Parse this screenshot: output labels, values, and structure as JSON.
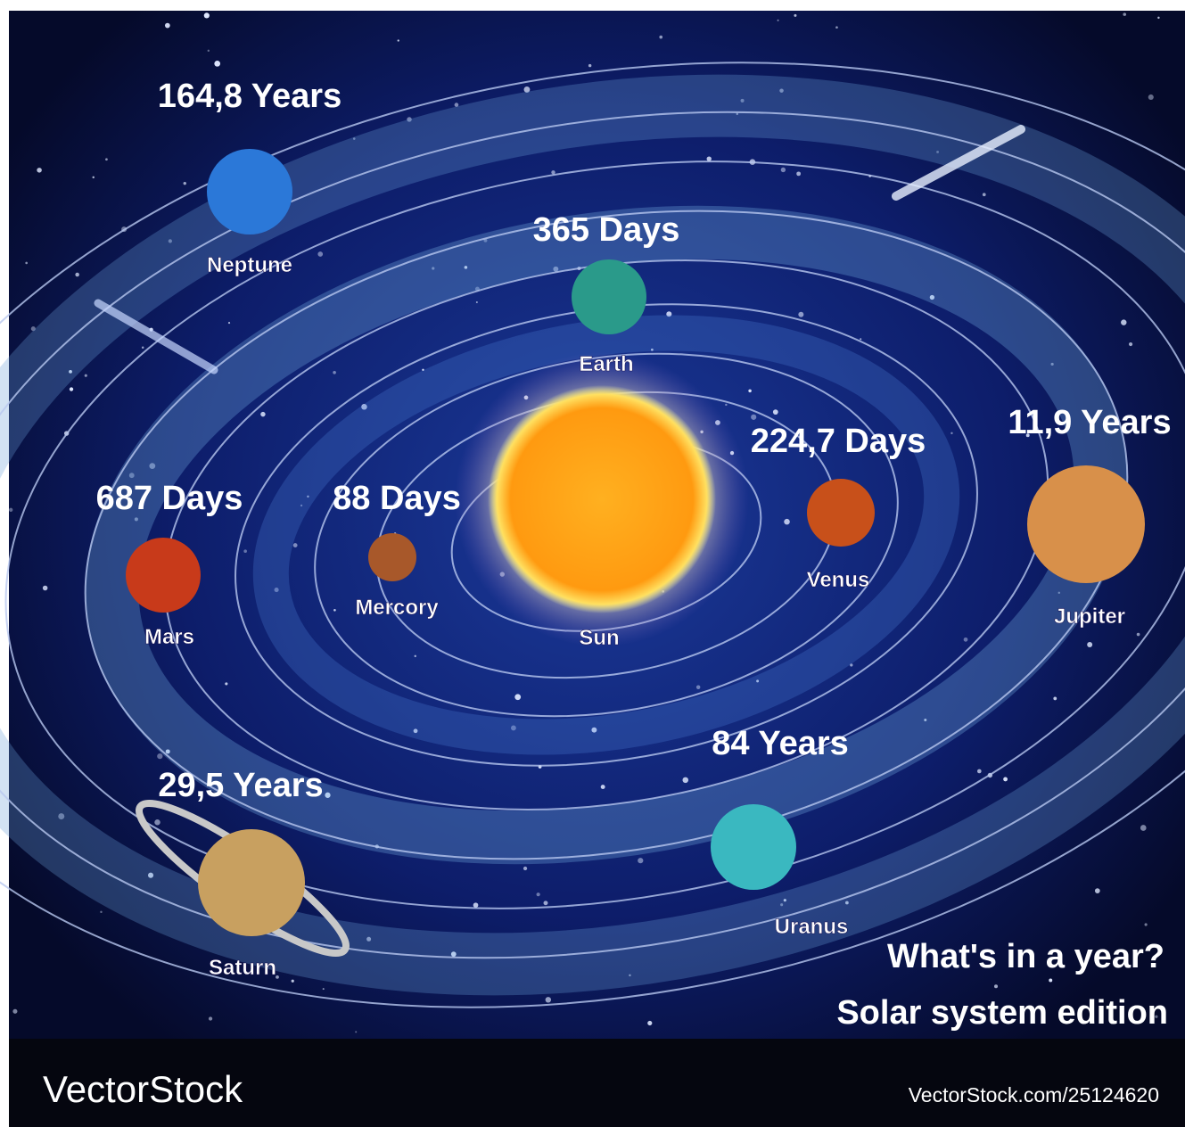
{
  "title": {
    "line1": "What's in a year?",
    "line2": "Solar system edition"
  },
  "bodies": [
    {
      "period": "164,8 Years",
      "name": "Neptune"
    },
    {
      "period": "365 Days",
      "name": "Earth"
    },
    {
      "period": "224,7 Days",
      "name": "Venus"
    },
    {
      "period": "11,9 Years",
      "name": "Jupiter"
    },
    {
      "period": "687 Days",
      "name": "Mars"
    },
    {
      "period": "88 Days",
      "name": "Mercory"
    },
    {
      "name": "Sun"
    },
    {
      "period": "84 Years",
      "name": "Uranus"
    },
    {
      "period": "29,5 Years",
      "name": "Saturn"
    }
  ],
  "watermark": {
    "logo": "VectorStock",
    "url": "VectorStock.com/25124620"
  }
}
